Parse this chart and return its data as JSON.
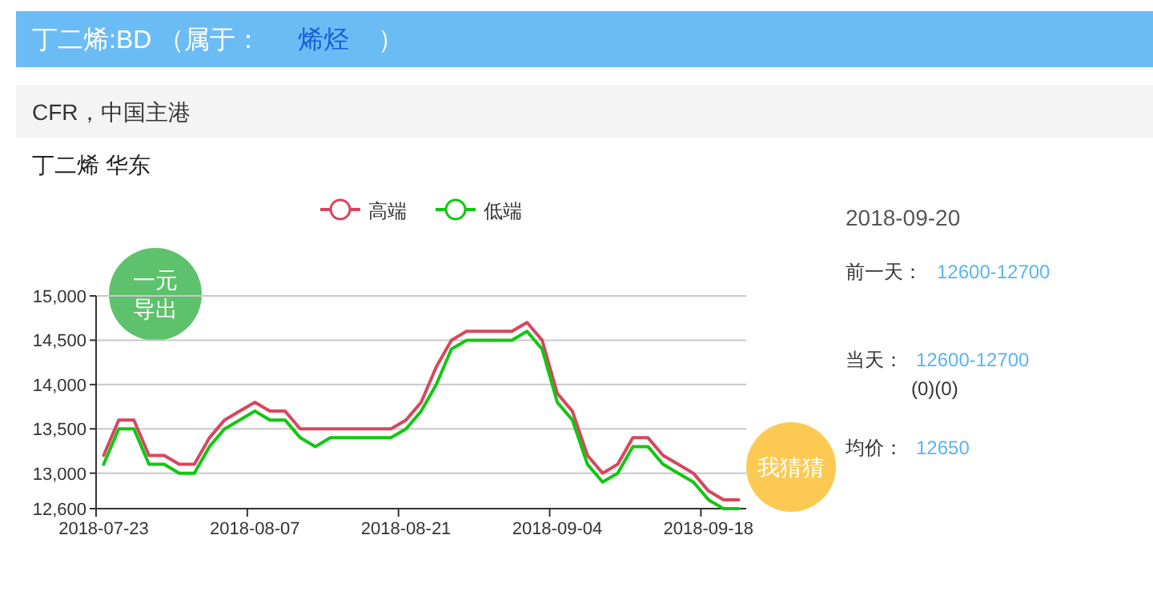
{
  "chart_data": {
    "type": "line",
    "title": "丁二烯 华东",
    "annotations": [
      "丁二烯:BD （属于：",
      "烯烃",
      "）",
      "CFR，中国主港",
      "2018-09-20",
      "前一天：",
      "12600-12700",
      "当天：",
      "12600-12700",
      "(0)(0)",
      "均价：",
      "12650",
      "一元导出",
      "我猜猜"
    ],
    "categories": [
      "2018-07-23",
      null,
      null,
      null,
      null,
      null,
      null,
      null,
      null,
      null,
      "2018-08-07",
      null,
      null,
      null,
      null,
      null,
      null,
      null,
      null,
      null,
      "2018-08-21",
      null,
      null,
      null,
      null,
      null,
      null,
      null,
      null,
      null,
      "2018-09-04",
      null,
      null,
      null,
      null,
      null,
      null,
      null,
      null,
      null,
      "2018-09-18",
      null,
      null
    ],
    "series": [
      {
        "name": "高端",
        "color": "#d6475f",
        "values": [
          13200,
          13600,
          13600,
          13200,
          13200,
          13100,
          13100,
          13400,
          13600,
          13700,
          13800,
          13700,
          13700,
          13500,
          13500,
          13500,
          13500,
          13500,
          13500,
          13500,
          13600,
          13800,
          14200,
          14500,
          14600,
          14600,
          14600,
          14600,
          14700,
          14500,
          13900,
          13700,
          13200,
          13000,
          13100,
          13400,
          13400,
          13200,
          13100,
          13000,
          12800,
          12700,
          12700
        ]
      },
      {
        "name": "低端",
        "color": "#11c711",
        "values": [
          13100,
          13500,
          13500,
          13100,
          13100,
          13000,
          13000,
          13300,
          13500,
          13600,
          13700,
          13600,
          13600,
          13400,
          13300,
          13400,
          13400,
          13400,
          13400,
          13400,
          13500,
          13700,
          14000,
          14400,
          14500,
          14500,
          14500,
          14500,
          14600,
          14400,
          13800,
          13600,
          13100,
          12900,
          13000,
          13300,
          13300,
          13100,
          13000,
          12900,
          12700,
          12600,
          12600
        ]
      }
    ],
    "ylim": [
      12600,
      15000
    ],
    "yticks": [
      {
        "value": 12600,
        "label": "12,600"
      },
      {
        "value": 13000,
        "label": "13,000"
      },
      {
        "value": 13500,
        "label": "13,500"
      },
      {
        "value": 14000,
        "label": "14,000"
      },
      {
        "value": 14500,
        "label": "14,500"
      },
      {
        "value": 15000,
        "label": "15,000"
      }
    ],
    "grid": "y",
    "legend": "top",
    "line_style": "solid"
  }
}
